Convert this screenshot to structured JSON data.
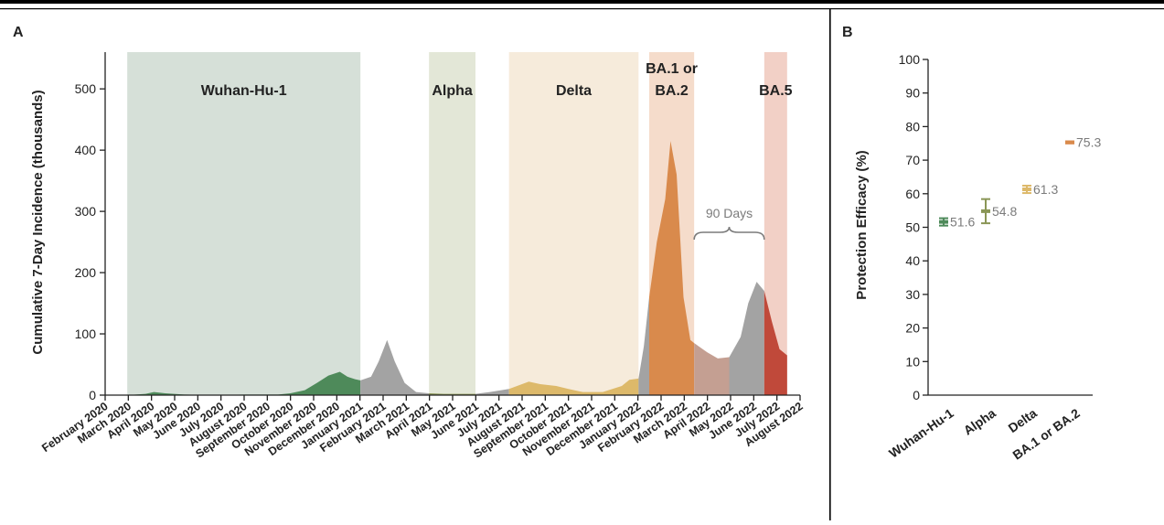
{
  "panelA": {
    "label": "A",
    "ylabel": "Cumulative 7-Day Incidence (thousands)",
    "annotation": "90 Days",
    "bands": [
      {
        "name": "Wuhan-Hu-1",
        "start": "2020-03-01",
        "end": "2021-01-01",
        "color": "#d6e0d8"
      },
      {
        "name": "Alpha",
        "start": "2021-04-01",
        "end": "2021-06-01",
        "color": "#e3e7d7"
      },
      {
        "name": "Delta",
        "start": "2021-07-15",
        "end": "2022-01-01",
        "color": "#f6ebdb"
      },
      {
        "name": "BA.1 or BA.2",
        "start": "2022-01-15",
        "end": "2022-03-15",
        "color": "#f5dccb"
      },
      {
        "name": "BA.5",
        "start": "2022-06-15",
        "end": "2022-07-15",
        "color": "#f2d0c6"
      }
    ]
  },
  "panelB": {
    "label": "B",
    "ylabel": "Protection Efficacy (%)"
  },
  "colors": {
    "wuhan": "#4e8a5a",
    "gray": "#a3a3a3",
    "alpha": "#8a9656",
    "delta": "#ddb96a",
    "omicron": "#d98a4c",
    "omicron_muted": "#c49f92",
    "ba5": "#c0493a",
    "text": "#222222",
    "label_gray": "#7b7b7b"
  },
  "chart_data": [
    {
      "type": "area",
      "ylim": [
        0,
        560
      ],
      "xlim": [
        "2020-02-01",
        "2022-08-01"
      ],
      "yticks": [
        0,
        100,
        200,
        300,
        400,
        500
      ],
      "xticks": [
        "February 2020",
        "March 2020",
        "April 2020",
        "May 2020",
        "June 2020",
        "July 2020",
        "August 2020",
        "September 2020",
        "October 2020",
        "November 2020",
        "December 2020",
        "January 2021",
        "February 2021",
        "March 2021",
        "April 2021",
        "May 2021",
        "June 2021",
        "July 2021",
        "August 2021",
        "September 2021",
        "October 2021",
        "November 2021",
        "December 2021",
        "January 2022",
        "February 2022",
        "March 2022",
        "April 2022",
        "May 2022",
        "June 2022",
        "July 2022",
        "August 2022"
      ],
      "series": [
        {
          "period": "wuhan",
          "points": [
            [
              "2020-03-01",
              0
            ],
            [
              "2020-03-25",
              2
            ],
            [
              "2020-04-05",
              5
            ],
            [
              "2020-04-20",
              3
            ],
            [
              "2020-05-15",
              1
            ],
            [
              "2020-06-30",
              0
            ],
            [
              "2020-08-01",
              1
            ],
            [
              "2020-09-15",
              1
            ],
            [
              "2020-10-01",
              3
            ],
            [
              "2020-10-20",
              8
            ],
            [
              "2020-11-05",
              20
            ],
            [
              "2020-11-20",
              32
            ],
            [
              "2020-12-05",
              38
            ],
            [
              "2020-12-15",
              30
            ],
            [
              "2020-12-25",
              26
            ],
            [
              "2021-01-01",
              24
            ]
          ]
        },
        {
          "period": "gray",
          "points": [
            [
              "2021-01-01",
              24
            ],
            [
              "2021-01-15",
              30
            ],
            [
              "2021-01-25",
              55
            ],
            [
              "2021-02-05",
              90
            ],
            [
              "2021-02-15",
              55
            ],
            [
              "2021-02-28",
              20
            ],
            [
              "2021-03-15",
              5
            ],
            [
              "2021-04-01",
              3
            ]
          ]
        },
        {
          "period": "alpha",
          "points": [
            [
              "2021-04-01",
              3
            ],
            [
              "2021-04-20",
              2
            ],
            [
              "2021-05-10",
              2
            ],
            [
              "2021-06-01",
              2
            ]
          ]
        },
        {
          "period": "gray",
          "points": [
            [
              "2021-06-01",
              2
            ],
            [
              "2021-06-20",
              5
            ],
            [
              "2021-07-15",
              10
            ]
          ]
        },
        {
          "period": "delta",
          "points": [
            [
              "2021-07-15",
              10
            ],
            [
              "2021-08-10",
              22
            ],
            [
              "2021-08-25",
              18
            ],
            [
              "2021-09-15",
              15
            ],
            [
              "2021-10-01",
              10
            ],
            [
              "2021-10-20",
              5
            ],
            [
              "2021-11-15",
              5
            ],
            [
              "2021-12-10",
              15
            ],
            [
              "2021-12-20",
              25
            ],
            [
              "2022-01-01",
              27
            ]
          ]
        },
        {
          "period": "gray",
          "points": [
            [
              "2022-01-01",
              27
            ],
            [
              "2022-01-08",
              80
            ],
            [
              "2022-01-15",
              160
            ]
          ]
        },
        {
          "period": "omicron",
          "points": [
            [
              "2022-01-15",
              160
            ],
            [
              "2022-01-25",
              250
            ],
            [
              "2022-02-05",
              320
            ],
            [
              "2022-02-12",
              415
            ],
            [
              "2022-02-20",
              360
            ],
            [
              "2022-03-01",
              160
            ],
            [
              "2022-03-10",
              90
            ],
            [
              "2022-03-15",
              85
            ]
          ]
        },
        {
          "period": "omicron_muted",
          "points": [
            [
              "2022-03-15",
              85
            ],
            [
              "2022-04-01",
              70
            ],
            [
              "2022-04-15",
              60
            ],
            [
              "2022-04-30",
              62
            ]
          ]
        },
        {
          "period": "gray",
          "points": [
            [
              "2022-04-30",
              62
            ],
            [
              "2022-05-15",
              95
            ],
            [
              "2022-05-25",
              150
            ],
            [
              "2022-06-05",
              185
            ],
            [
              "2022-06-15",
              170
            ]
          ]
        },
        {
          "period": "ba5",
          "points": [
            [
              "2022-06-15",
              170
            ],
            [
              "2022-06-25",
              120
            ],
            [
              "2022-07-05",
              75
            ],
            [
              "2022-07-15",
              65
            ]
          ]
        }
      ]
    },
    {
      "type": "scatter",
      "ylim": [
        0,
        100
      ],
      "yticks": [
        0,
        10,
        20,
        30,
        40,
        50,
        60,
        70,
        80,
        90,
        100
      ],
      "categories": [
        "Wuhan-Hu-1",
        "Alpha",
        "Delta",
        "BA.1 or BA.2"
      ],
      "values": [
        51.6,
        54.8,
        61.3,
        75.3
      ],
      "value_labels": [
        "51.6",
        "54.8",
        "61.3",
        "75.3"
      ],
      "ci_low": [
        50.5,
        51.2,
        60.2,
        75.0
      ],
      "ci_high": [
        52.7,
        58.4,
        62.4,
        75.6
      ],
      "colors": [
        "#4e8a5a",
        "#8a9656",
        "#ddb96a",
        "#d98a4c"
      ]
    }
  ]
}
